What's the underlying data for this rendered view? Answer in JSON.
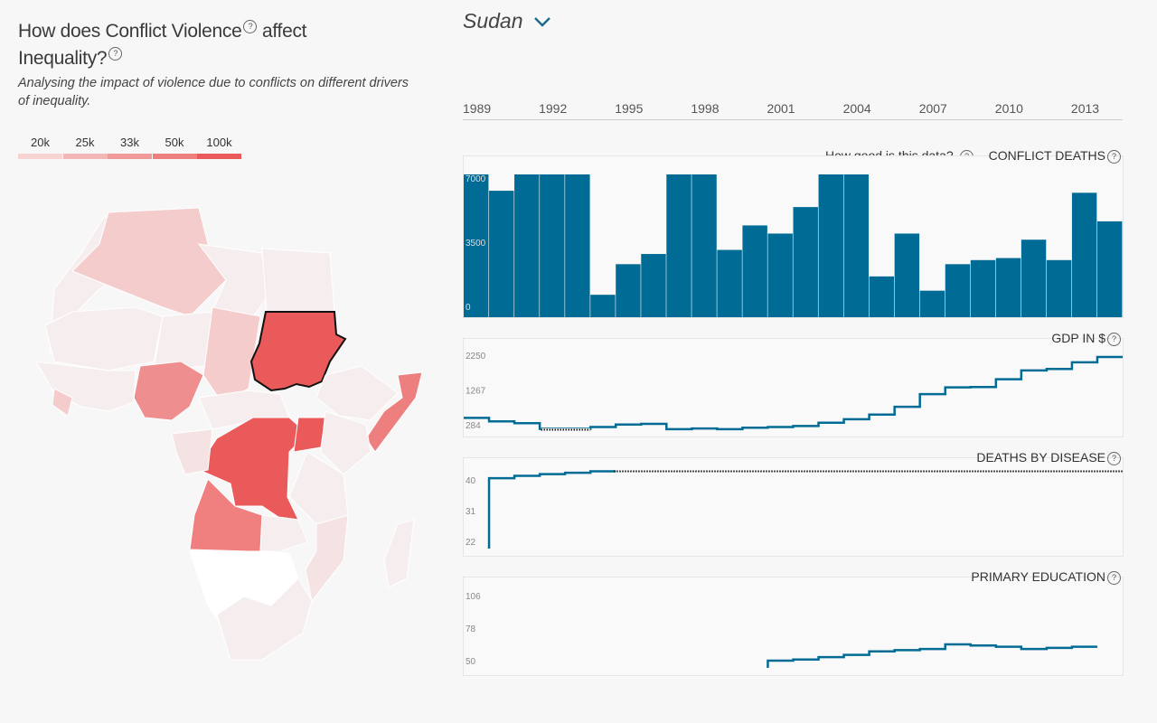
{
  "left": {
    "title_line1": "How does Conflict Violence",
    "title_line1b": "affect",
    "title_line2": "Inequality?",
    "subtitle": "Analysing the impact of violence due to conflicts on different drivers of inequality.",
    "legend": [
      {
        "label": "20k",
        "color": "#f8d3d3"
      },
      {
        "label": "25k",
        "color": "#f4b7b7"
      },
      {
        "label": "33k",
        "color": "#f19a9a"
      },
      {
        "label": "50k",
        "color": "#ee7f7f"
      },
      {
        "label": "100k",
        "color": "#ea5a5a"
      }
    ]
  },
  "header": {
    "country": "Sudan"
  },
  "timeline": {
    "years": [
      "1989",
      "1992",
      "1995",
      "1998",
      "2001",
      "2004",
      "2007",
      "2010",
      "2013"
    ]
  },
  "data_quality_link": "How good is this data?",
  "colors": {
    "series": "#006b95",
    "selected": "#ea5a5a",
    "projection": "#111111"
  },
  "chart_data": [
    {
      "type": "bar",
      "title": "CONFLICT DEATHS",
      "x": [
        1989,
        1990,
        1991,
        1992,
        1993,
        1994,
        1995,
        1996,
        1997,
        1998,
        1999,
        2000,
        2001,
        2002,
        2003,
        2004,
        2005,
        2006,
        2007,
        2008,
        2009,
        2010,
        2011,
        2012,
        2013,
        2014
      ],
      "values": [
        7000,
        6200,
        7000,
        7000,
        7000,
        1100,
        2600,
        3100,
        7000,
        7000,
        3300,
        4500,
        4100,
        5400,
        7000,
        7000,
        2000,
        4100,
        1300,
        2600,
        2800,
        2900,
        3800,
        2800,
        6100,
        4700
      ],
      "yticks": [
        "0",
        "3500",
        "7000"
      ],
      "ylim": [
        0,
        7000
      ]
    },
    {
      "type": "line",
      "title": "GDP IN $",
      "x": [
        1989,
        1990,
        1991,
        1992,
        1993,
        1994,
        1995,
        1996,
        1997,
        1998,
        1999,
        2000,
        2001,
        2002,
        2003,
        2004,
        2005,
        2006,
        2007,
        2008,
        2009,
        2010,
        2011,
        2012,
        2013,
        2014
      ],
      "values": [
        480,
        380,
        330,
        170,
        170,
        220,
        290,
        310,
        160,
        180,
        160,
        200,
        220,
        250,
        340,
        440,
        570,
        790,
        1150,
        1340,
        1350,
        1570,
        1820,
        1860,
        2050,
        2200
      ],
      "yticks": [
        "284",
        "1267",
        "2250"
      ],
      "ylim": [
        284,
        2250
      ],
      "gap": [
        1992,
        1993
      ]
    },
    {
      "type": "line",
      "title": "DEATHS BY DISEASE",
      "x": [
        1989,
        1990,
        1991,
        1992,
        1993,
        1994
      ],
      "values": [
        17,
        40.5,
        41.2,
        41.7,
        42.1,
        42.5
      ],
      "projection_to": 2015,
      "yticks": [
        "22",
        "31",
        "40"
      ],
      "ylim": [
        22,
        40
      ]
    },
    {
      "type": "line",
      "title": "PRIMARY EDUCATION",
      "x": [
        2001,
        2002,
        2003,
        2004,
        2005,
        2006,
        2007,
        2008,
        2009,
        2010,
        2011,
        2012,
        2013
      ],
      "values": [
        50,
        51,
        53,
        55,
        58,
        59,
        60,
        64,
        63,
        62,
        60,
        61,
        62
      ],
      "yticks": [
        "50",
        "78",
        "106"
      ],
      "ylim": [
        50,
        106
      ]
    }
  ]
}
